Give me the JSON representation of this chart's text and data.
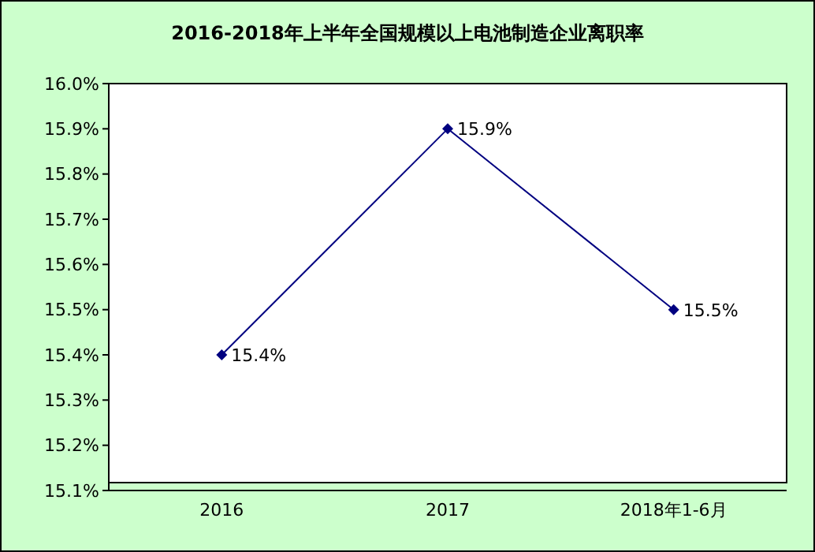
{
  "chart_data": {
    "type": "line",
    "title": "2016-2018年上半年全国规模以上电池制造企业离职率",
    "categories": [
      "2016",
      "2017",
      "2018年1-6月"
    ],
    "series": [
      {
        "color": "#000080",
        "values": [
          15.4,
          15.9,
          15.5
        ],
        "value_labels": [
          "15.4%",
          "15.9%",
          "15.5%"
        ]
      }
    ],
    "ylim": [
      15.1,
      16.0
    ],
    "yticks": [
      {
        "value": 15.1,
        "label": "15.1%"
      },
      {
        "value": 15.2,
        "label": "15.2%"
      },
      {
        "value": 15.3,
        "label": "15.3%"
      },
      {
        "value": 15.4,
        "label": "15.4%"
      },
      {
        "value": 15.5,
        "label": "15.5%"
      },
      {
        "value": 15.6,
        "label": "15.6%"
      },
      {
        "value": 15.7,
        "label": "15.7%"
      },
      {
        "value": 15.8,
        "label": "15.8%"
      },
      {
        "value": 15.9,
        "label": "15.9%"
      },
      {
        "value": 16.0,
        "label": "16.0%"
      }
    ],
    "marker": "diamond",
    "line_style": "solid",
    "grid": false,
    "legend": false
  }
}
